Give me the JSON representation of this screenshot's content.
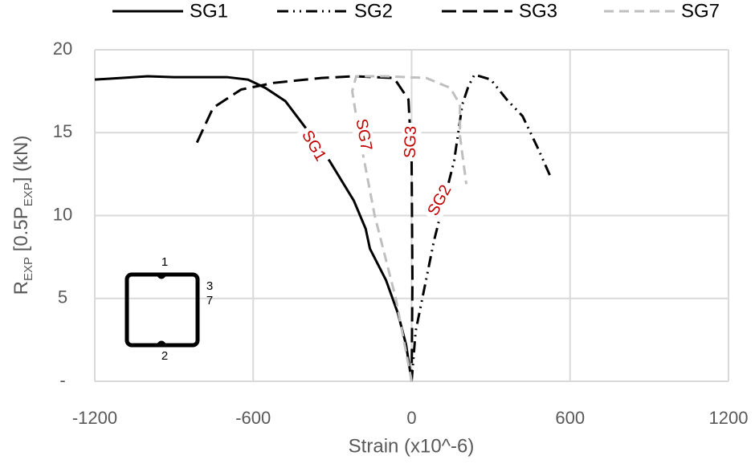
{
  "chart_data": {
    "type": "line",
    "xlabel": "Strain (x10^-6)",
    "ylabel": [
      "R",
      "EXP",
      " [0.5P",
      "EXP",
      "] (kN)"
    ],
    "xlim": [
      -1200,
      1200
    ],
    "xticks": [
      -1200,
      -600,
      0,
      600,
      1200
    ],
    "ylim": [
      0,
      20
    ],
    "yticks": [
      {
        "value": 0,
        "label": "-"
      },
      5,
      10,
      15,
      20
    ],
    "grid": true,
    "legend": "top",
    "series": [
      {
        "name": "SG1",
        "color": "#000000",
        "dash": "solid",
        "x": [
          -1200,
          -1100,
          -1000,
          -900,
          -700,
          -620,
          -554,
          -478,
          -402,
          -311,
          -219,
          -174,
          -158,
          -97,
          -52,
          -21,
          0
        ],
        "values": [
          18.2,
          18.3,
          18.4,
          18.35,
          18.35,
          18.2,
          17.7,
          16.9,
          15.3,
          13.3,
          10.9,
          9.2,
          8.0,
          6.1,
          4.1,
          2.2,
          0
        ]
      },
      {
        "name": "SG2",
        "color": "#000000",
        "dash": "dash-dot-dot",
        "x": [
          0,
          15,
          85,
          161,
          192,
          215,
          238,
          300,
          360,
          420,
          480,
          527
        ],
        "values": [
          0,
          3,
          8.5,
          13.3,
          16.7,
          17.8,
          18.5,
          18.2,
          17.0,
          16.0,
          14.0,
          12.3
        ]
      },
      {
        "name": "SG3",
        "color": "#000000",
        "dash": "long-dash",
        "x": [
          -813,
          -752,
          -646,
          -524,
          -341,
          -219,
          -67,
          -12,
          0,
          3,
          0
        ],
        "values": [
          14.4,
          16.5,
          17.6,
          18.0,
          18.3,
          18.4,
          18.3,
          17.0,
          13.3,
          6.1,
          0
        ]
      },
      {
        "name": "SG7",
        "color": "#bfbfbf",
        "dash": "dash",
        "x": [
          0,
          -60,
          -140,
          -200,
          -225,
          -210,
          -100,
          55,
          146,
          183,
          183,
          207
        ],
        "values": [
          0,
          5,
          10,
          15,
          17.5,
          18.4,
          18.4,
          18.3,
          17.7,
          16.7,
          14.8,
          11.9
        ]
      }
    ],
    "annotations": [
      "SG1",
      "SG7",
      "SG3",
      "SG2"
    ],
    "inset_labels": [
      "1",
      "3",
      "7",
      "2"
    ]
  }
}
